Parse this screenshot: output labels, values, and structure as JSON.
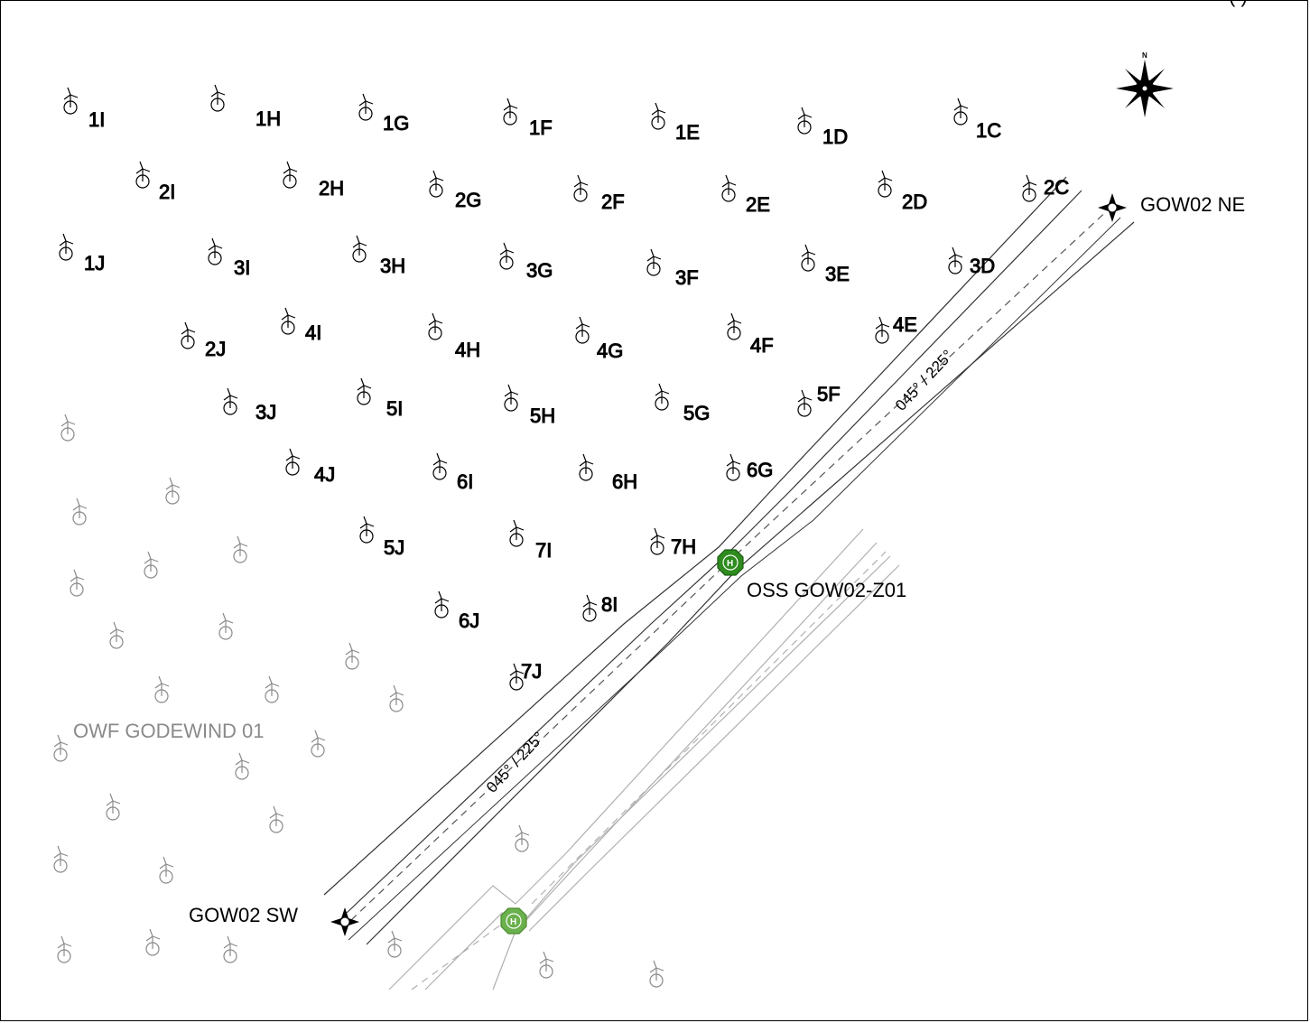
{
  "corner_text": "(      )",
  "north_label": "N",
  "wind_farm_label": "OWF GODEWIND 01",
  "substation_label": "OSS GOW02-Z01",
  "corridor_bearing_upper": "045° / 225°",
  "corridor_bearing_lower": "045° / 225°",
  "waypoints": {
    "ne": "GOW02 NE",
    "sw": "GOW02 SW"
  },
  "turbines": [
    {
      "id": "1I"
    },
    {
      "id": "1H"
    },
    {
      "id": "1G"
    },
    {
      "id": "1F"
    },
    {
      "id": "1E"
    },
    {
      "id": "1D"
    },
    {
      "id": "1C"
    },
    {
      "id": "2I"
    },
    {
      "id": "2H"
    },
    {
      "id": "2G"
    },
    {
      "id": "2F"
    },
    {
      "id": "2E"
    },
    {
      "id": "2D"
    },
    {
      "id": "2C"
    },
    {
      "id": "1J"
    },
    {
      "id": "3I"
    },
    {
      "id": "3H"
    },
    {
      "id": "3G"
    },
    {
      "id": "3F"
    },
    {
      "id": "3E"
    },
    {
      "id": "3D"
    },
    {
      "id": "2J"
    },
    {
      "id": "4I"
    },
    {
      "id": "4H"
    },
    {
      "id": "4G"
    },
    {
      "id": "4F"
    },
    {
      "id": "4E"
    },
    {
      "id": "3J"
    },
    {
      "id": "5I"
    },
    {
      "id": "5H"
    },
    {
      "id": "5G"
    },
    {
      "id": "5F"
    },
    {
      "id": "4J"
    },
    {
      "id": "6I"
    },
    {
      "id": "6H"
    },
    {
      "id": "6G"
    },
    {
      "id": "5J"
    },
    {
      "id": "7I"
    },
    {
      "id": "7H"
    },
    {
      "id": "6J"
    },
    {
      "id": "8I"
    },
    {
      "id": "7J"
    }
  ],
  "colors": {
    "turbine_active": "#000000",
    "turbine_neighbour": "#8a8a8a",
    "corridor_line": "#333333",
    "corridor_line_neighbour": "#b0b0b0",
    "helipad": "#2e8b1e",
    "helipad_neighbour": "#6ab04c"
  }
}
